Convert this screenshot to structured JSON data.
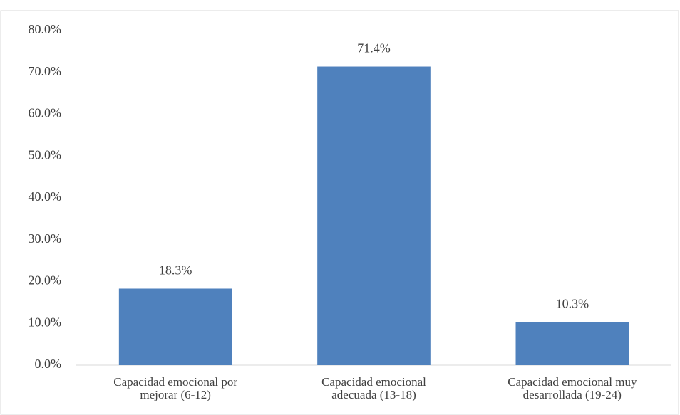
{
  "chart_data": {
    "type": "bar",
    "categories": [
      "Capacidad emocional por mejorar (6-12)",
      "Capacidad emocional adecuada (13-18)",
      "Capacidad emocional muy desarrollada (19-24)"
    ],
    "values": [
      18.3,
      71.4,
      10.3
    ],
    "value_labels": [
      "18.3%",
      "71.4%",
      "10.3%"
    ],
    "color": "#4f81bd",
    "ylim": [
      0,
      80
    ],
    "yticks": [
      {
        "value": 0,
        "label": "0.0%"
      },
      {
        "value": 10,
        "label": "10.0%"
      },
      {
        "value": 20,
        "label": "20.0%"
      },
      {
        "value": 30,
        "label": "30.0%"
      },
      {
        "value": 40,
        "label": "40.0%"
      },
      {
        "value": 50,
        "label": "50.0%"
      },
      {
        "value": 60,
        "label": "60.0%"
      },
      {
        "value": 70,
        "label": "70.0%"
      },
      {
        "value": 80,
        "label": "80.0%"
      }
    ],
    "grid": false
  }
}
